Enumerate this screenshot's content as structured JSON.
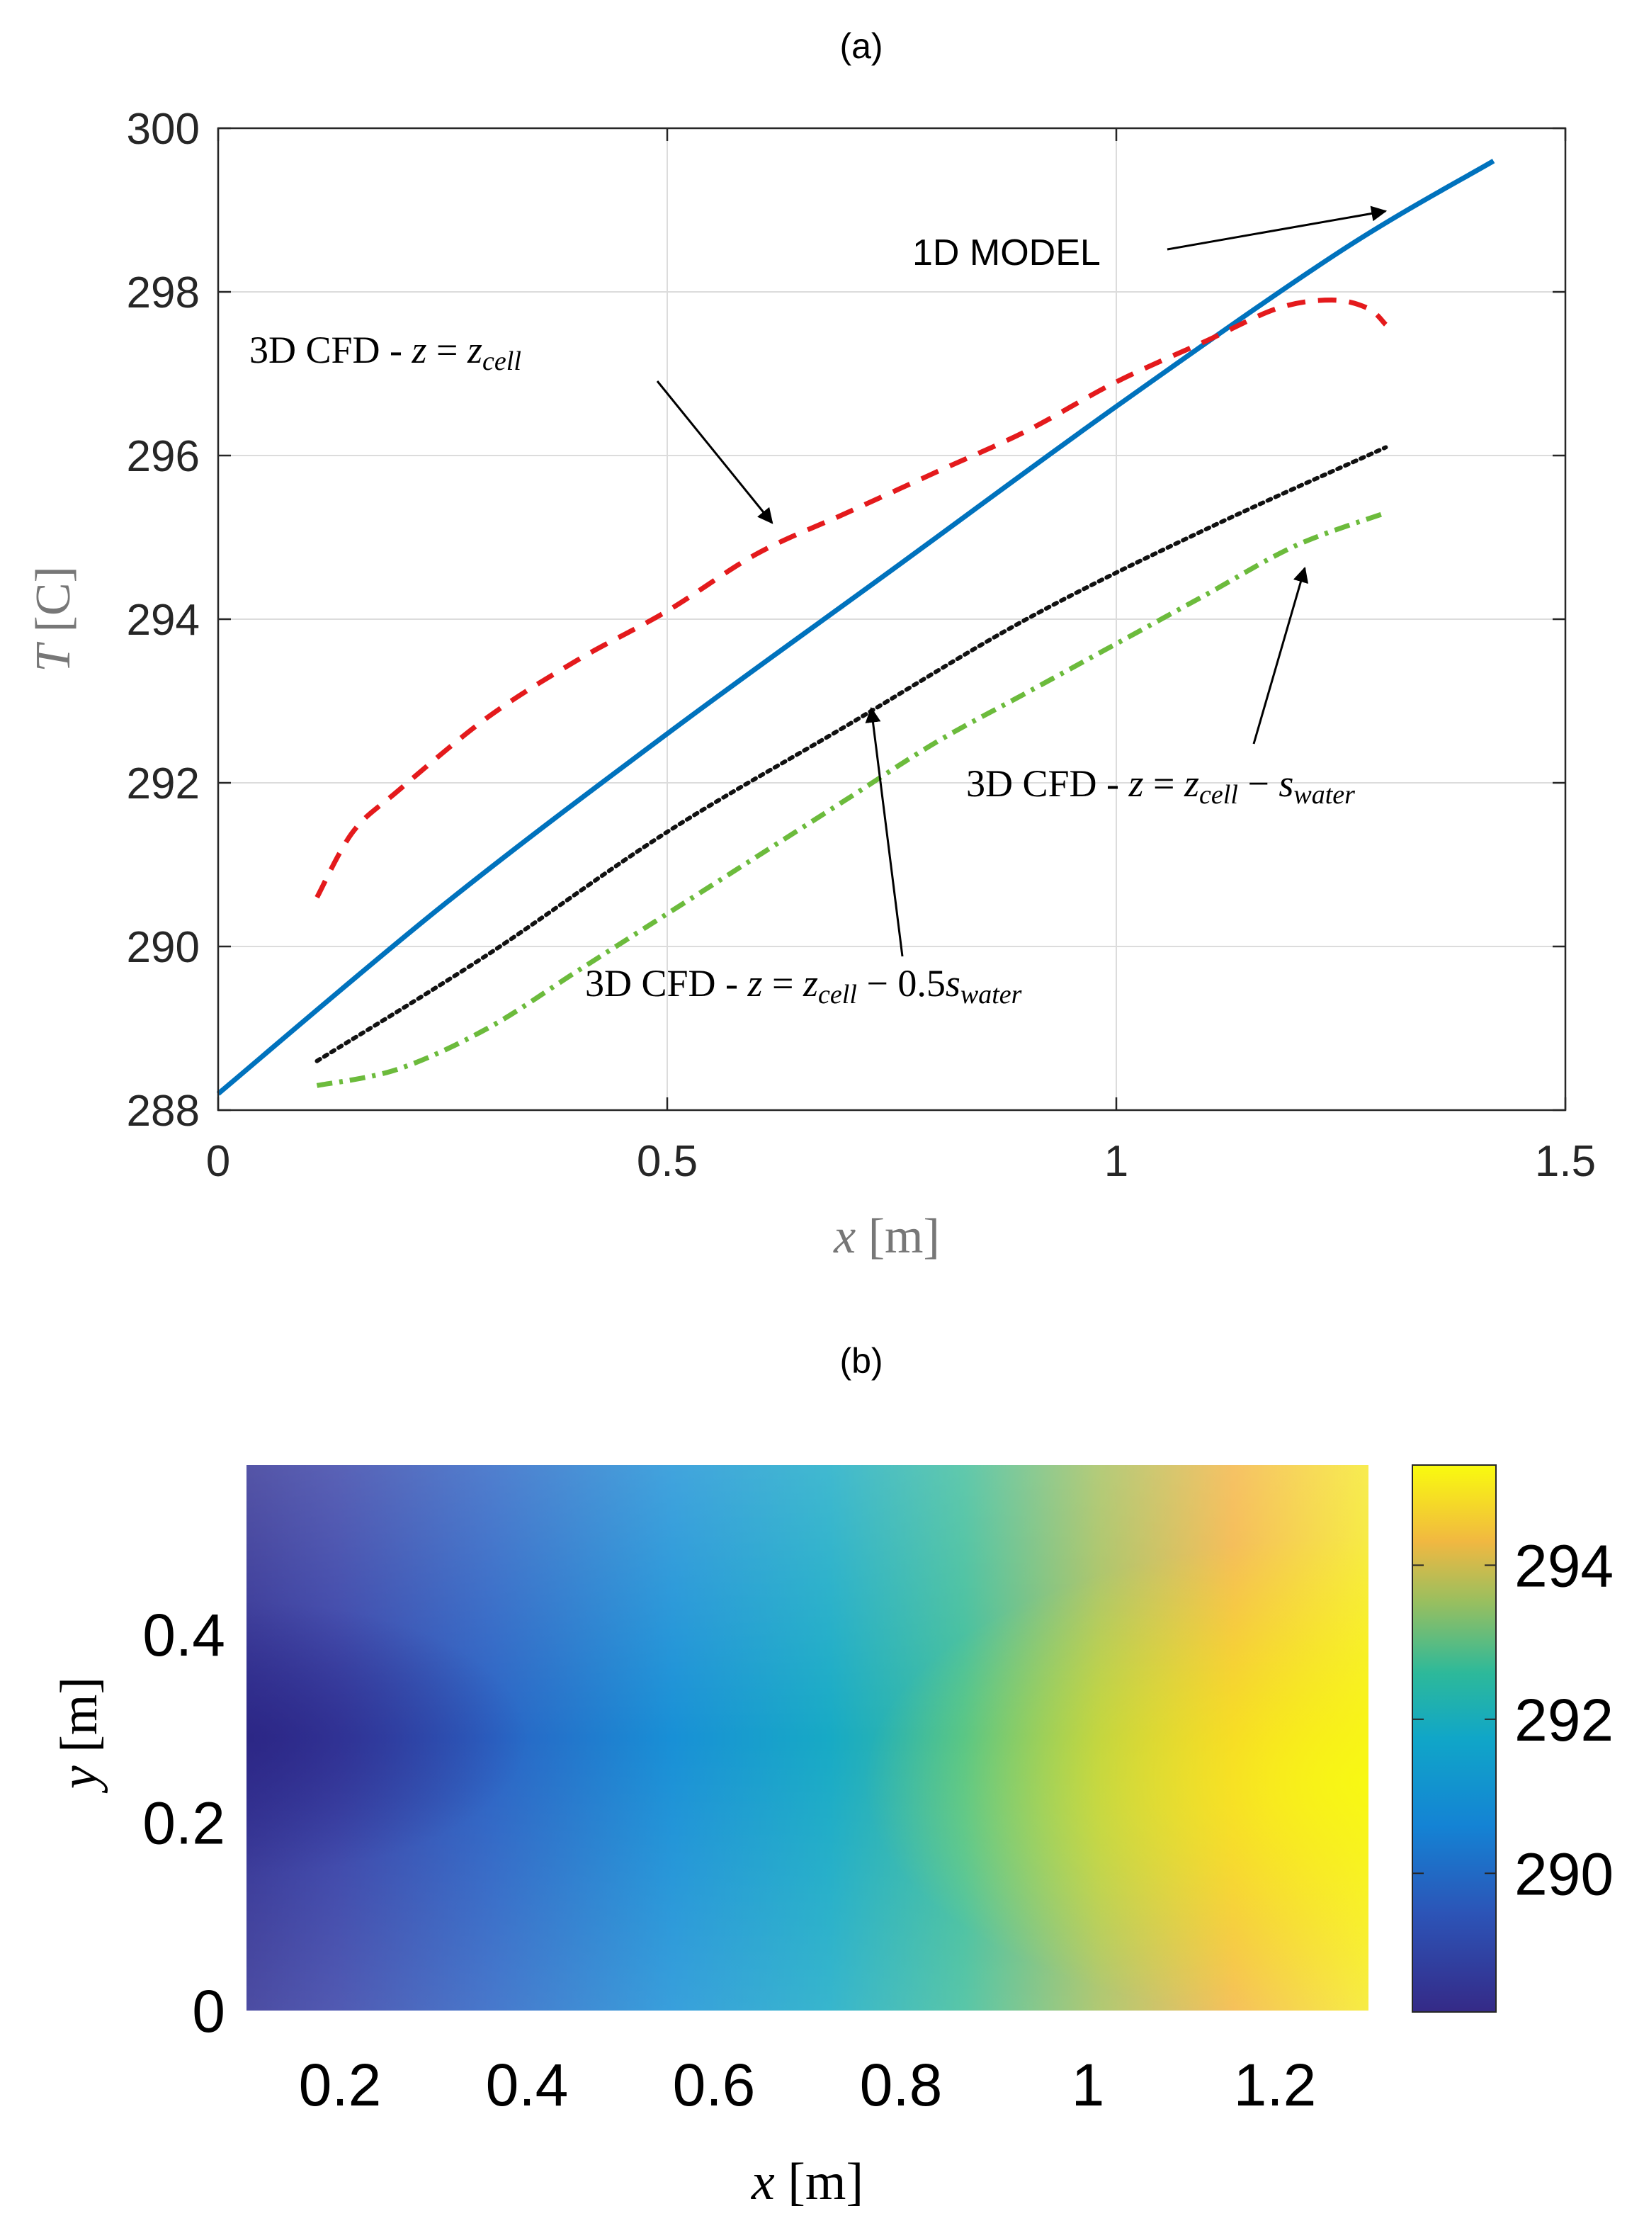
{
  "chart_data": [
    {
      "panel": "(a)",
      "type": "line",
      "xlabel": {
        "var": "x",
        "unit": "[m]"
      },
      "ylabel": {
        "var": "T",
        "unit": "[C]"
      },
      "xlim": [
        0,
        1.5
      ],
      "ylim": [
        288,
        300
      ],
      "xticks": [
        "0",
        "0.5",
        "1",
        "1.5"
      ],
      "yticks": [
        "288",
        "290",
        "292",
        "294",
        "296",
        "298",
        "300"
      ],
      "grid": true,
      "series": [
        {
          "id": "model1d",
          "color": "#0072BD",
          "style": "solid",
          "x": [
            0,
            0.25,
            0.5,
            0.75,
            1.0,
            1.25,
            1.42
          ],
          "y": [
            288.2,
            290.5,
            292.6,
            294.6,
            296.6,
            298.5,
            299.6
          ]
        },
        {
          "id": "cfd_zcell",
          "color": "#E41A1C",
          "style": "dashed",
          "x": [
            0.11,
            0.15,
            0.2,
            0.3,
            0.4,
            0.5,
            0.6,
            0.7,
            0.8,
            0.9,
            1.0,
            1.1,
            1.18,
            1.24,
            1.28,
            1.3
          ],
          "y": [
            290.6,
            291.4,
            291.9,
            292.8,
            293.5,
            294.1,
            294.8,
            295.3,
            295.8,
            296.3,
            296.9,
            297.4,
            297.8,
            297.9,
            297.8,
            297.6
          ]
        },
        {
          "id": "cfd_half",
          "color": "#111111",
          "style": "dotted",
          "x": [
            0.11,
            0.3,
            0.5,
            0.7,
            0.9,
            1.1,
            1.3
          ],
          "y": [
            288.6,
            289.9,
            291.4,
            292.7,
            294.0,
            295.1,
            296.1
          ]
        },
        {
          "id": "cfd_swater",
          "color": "#6CBB3C",
          "style": "dashdot",
          "x": [
            0.11,
            0.2,
            0.3,
            0.4,
            0.5,
            0.6,
            0.7,
            0.8,
            0.9,
            1.0,
            1.1,
            1.2,
            1.3
          ],
          "y": [
            288.3,
            288.5,
            289.0,
            289.7,
            290.4,
            291.1,
            291.8,
            292.5,
            293.1,
            293.7,
            294.3,
            294.9,
            295.3
          ]
        }
      ],
      "annotations": {
        "model1d": {
          "plain": "1D MODEL"
        },
        "cfd_zcell": {
          "prefix": "3D CFD - ",
          "z": "z",
          "eq": " = ",
          "zc": "z",
          "sub": "cell"
        },
        "cfd_swater": {
          "prefix": "3D CFD - ",
          "z": "z",
          "eq": " = ",
          "zc": "z",
          "sub": "cell",
          "minus": " − ",
          "s": "s",
          "ssub": "water"
        },
        "cfd_half": {
          "prefix": "3D CFD - ",
          "z": "z",
          "eq": " = ",
          "zc": "z",
          "sub": "cell",
          "minus": " − 0.5",
          "s": "s",
          "ssub": "water"
        }
      }
    },
    {
      "panel": "(b)",
      "type": "heatmap",
      "xlabel": {
        "var": "x",
        "unit": "[m]"
      },
      "ylabel": {
        "var": "y",
        "unit": "[m]"
      },
      "xlim": [
        0.1,
        1.3
      ],
      "ylim": [
        0,
        0.58
      ],
      "xticks": [
        "0.2",
        "0.4",
        "0.6",
        "0.8",
        "1",
        "1.2"
      ],
      "yticks": [
        "0",
        "0.2",
        "0.4"
      ],
      "colorbar": {
        "ticks": [
          "290",
          "292",
          "294"
        ],
        "range": [
          288.2,
          295.3
        ],
        "colormap": "parula"
      }
    }
  ],
  "colors": {
    "axis": "#262626",
    "grid": "#dcdcdc",
    "ylabel_gray": "#777777"
  }
}
